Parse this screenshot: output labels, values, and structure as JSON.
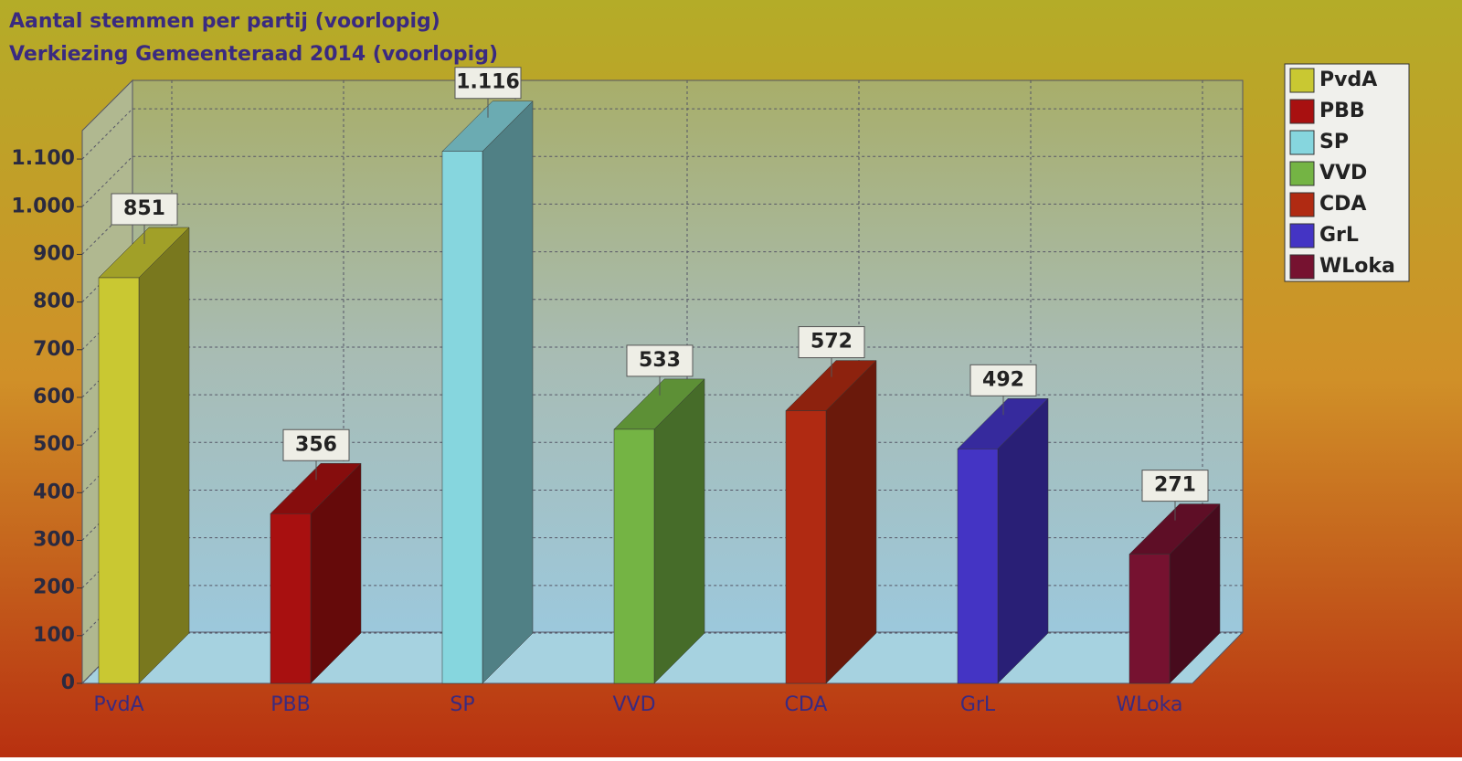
{
  "chart_data": {
    "type": "bar3d",
    "title": "Aantal stemmen per partij (voorlopig)",
    "subtitle": "Verkiezing Gemeenteraad 2014 (voorlopig)",
    "categories": [
      "PvdA",
      "PBB",
      "SP",
      "VVD",
      "CDA",
      "GrL",
      "WLoka"
    ],
    "values": [
      851,
      356,
      1116,
      533,
      572,
      492,
      271
    ],
    "value_labels": [
      "851",
      "356",
      "1.116",
      "533",
      "572",
      "492",
      "271"
    ],
    "colors": [
      "#c9c832",
      "#a81010",
      "#86d6de",
      "#74b444",
      "#b02a12",
      "#4434c4",
      "#761230"
    ],
    "ylim": [
      0,
      1150
    ],
    "yticks": [
      0,
      100,
      200,
      300,
      400,
      500,
      600,
      700,
      800,
      900,
      {
        "value": 1000,
        "label": "1.000"
      },
      {
        "value": 1100,
        "label": "1.100"
      }
    ],
    "grid": true,
    "legend": "top-right"
  }
}
